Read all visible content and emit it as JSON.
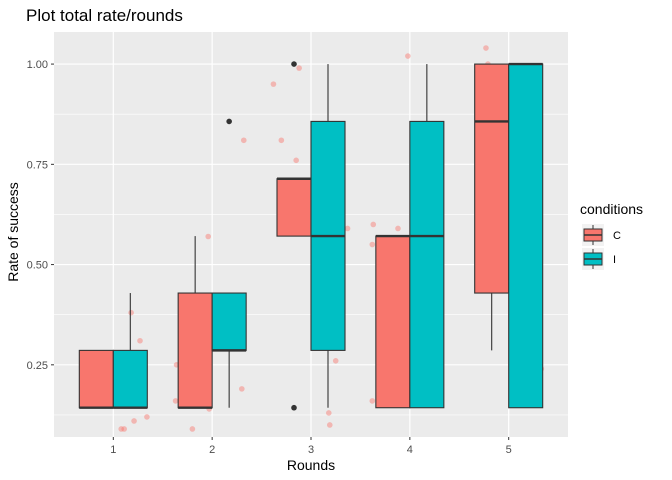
{
  "chart_data": {
    "type": "boxplot",
    "title": "Plot total rate/rounds",
    "xlabel": "Rounds",
    "ylabel": "Rate of success",
    "categories": [
      "1",
      "2",
      "3",
      "4",
      "5"
    ],
    "ylim": [
      0.07,
      1.08
    ],
    "y_ticks": [
      0.25,
      0.5,
      0.75,
      1.0
    ],
    "y_tick_labels": [
      "0.25",
      "0.50",
      "0.75",
      "1.00"
    ],
    "grid": true,
    "legend": {
      "title": "conditions",
      "position": "right"
    },
    "colors": {
      "panel": "#EBEBEB",
      "grid": "#FFFFFF",
      "C": "#F8766D",
      "I": "#00BFC4",
      "line": "#333333"
    },
    "series": [
      {
        "name": "C",
        "boxes": [
          {
            "lower": 0.143,
            "q1": 0.143,
            "median": 0.143,
            "q3": 0.286,
            "upper": 0.286,
            "outliers": []
          },
          {
            "lower": 0.143,
            "q1": 0.143,
            "median": 0.143,
            "q3": 0.429,
            "upper": 0.571,
            "outliers": []
          },
          {
            "lower": 0.571,
            "q1": 0.571,
            "median": 0.714,
            "q3": 0.714,
            "upper": 0.714,
            "outliers": [
              1.0,
              0.143
            ]
          },
          {
            "lower": 0.143,
            "q1": 0.143,
            "median": 0.571,
            "q3": 0.571,
            "upper": 0.571,
            "outliers": []
          },
          {
            "lower": 0.286,
            "q1": 0.429,
            "median": 0.857,
            "q3": 1.0,
            "upper": 1.0,
            "outliers": []
          }
        ]
      },
      {
        "name": "I",
        "boxes": [
          {
            "lower": 0.143,
            "q1": 0.143,
            "median": 0.143,
            "q3": 0.286,
            "upper": 0.429,
            "outliers": []
          },
          {
            "lower": 0.143,
            "q1": 0.286,
            "median": 0.286,
            "q3": 0.429,
            "upper": 0.429,
            "outliers": [
              0.857
            ]
          },
          {
            "lower": 0.143,
            "q1": 0.286,
            "median": 0.571,
            "q3": 0.857,
            "upper": 1.0,
            "outliers": []
          },
          {
            "lower": 0.143,
            "q1": 0.143,
            "median": 0.571,
            "q3": 0.857,
            "upper": 1.0,
            "outliers": []
          },
          {
            "lower": 0.143,
            "q1": 0.143,
            "median": 1.0,
            "q3": 1.0,
            "upper": 1.0,
            "outliers": []
          }
        ]
      }
    ],
    "jitter_points": [
      {
        "x": 0.97,
        "y": 0.18
      },
      {
        "x": 1.08,
        "y": 0.09
      },
      {
        "x": 1.11,
        "y": 0.09
      },
      {
        "x": 1.18,
        "y": 0.38
      },
      {
        "x": 1.16,
        "y": 0.26
      },
      {
        "x": 1.21,
        "y": 0.11
      },
      {
        "x": 1.27,
        "y": 0.31
      },
      {
        "x": 1.26,
        "y": 0.24
      },
      {
        "x": 1.34,
        "y": 0.12
      },
      {
        "x": 1.63,
        "y": 0.16
      },
      {
        "x": 1.64,
        "y": 0.25
      },
      {
        "x": 1.8,
        "y": 0.09
      },
      {
        "x": 1.92,
        "y": 0.29
      },
      {
        "x": 1.97,
        "y": 0.14
      },
      {
        "x": 1.96,
        "y": 0.57
      },
      {
        "x": 2.19,
        "y": 0.4
      },
      {
        "x": 2.3,
        "y": 0.19
      },
      {
        "x": 2.32,
        "y": 0.81
      },
      {
        "x": 2.62,
        "y": 0.95
      },
      {
        "x": 2.7,
        "y": 0.81
      },
      {
        "x": 2.85,
        "y": 0.76
      },
      {
        "x": 2.88,
        "y": 0.99
      },
      {
        "x": 3.03,
        "y": 0.77
      },
      {
        "x": 3.16,
        "y": 0.59
      },
      {
        "x": 3.18,
        "y": 0.13
      },
      {
        "x": 3.19,
        "y": 0.1
      },
      {
        "x": 3.25,
        "y": 0.26
      },
      {
        "x": 3.37,
        "y": 0.59
      },
      {
        "x": 3.62,
        "y": 0.55
      },
      {
        "x": 3.62,
        "y": 0.16
      },
      {
        "x": 3.63,
        "y": 0.6
      },
      {
        "x": 3.72,
        "y": 0.54
      },
      {
        "x": 3.72,
        "y": 0.15
      },
      {
        "x": 3.88,
        "y": 0.59
      },
      {
        "x": 3.98,
        "y": 1.02
      },
      {
        "x": 4.12,
        "y": 0.16
      },
      {
        "x": 4.28,
        "y": 0.16
      },
      {
        "x": 4.28,
        "y": 0.84
      },
      {
        "x": 4.68,
        "y": 0.98
      },
      {
        "x": 4.77,
        "y": 1.04
      },
      {
        "x": 4.79,
        "y": 1.0
      },
      {
        "x": 5.03,
        "y": 0.95
      },
      {
        "x": 5.03,
        "y": 0.19
      },
      {
        "x": 5.18,
        "y": 0.19
      },
      {
        "x": 5.25,
        "y": 0.37
      },
      {
        "x": 5.33,
        "y": 0.24
      }
    ]
  }
}
